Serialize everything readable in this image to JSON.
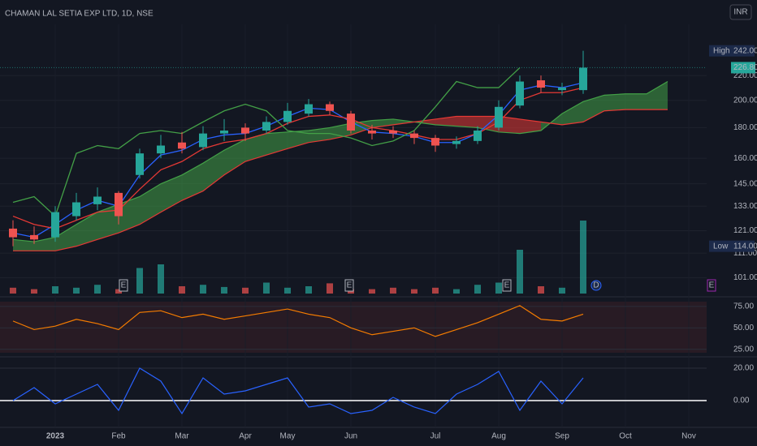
{
  "chart_data": {
    "type": "candlestick",
    "title": "CHAMAN LAL SETIA EXP LTD, 1D, NSE",
    "currency": "INR",
    "categories": [
      null,
      null,
      "2023",
      null,
      null,
      "Feb",
      null,
      null,
      "Mar",
      null,
      null,
      "Apr",
      null,
      "May",
      null,
      null,
      "Jun",
      null,
      null,
      null,
      "Jul",
      null,
      null,
      "Aug",
      null,
      null,
      "Sep",
      null,
      null,
      "Oct",
      null,
      null,
      "Nov"
    ],
    "log_scale": true,
    "grid": true,
    "ylim": [
      95,
      268
    ],
    "yticks": [
      {
        "value": 220,
        "label": "220.00"
      },
      {
        "value": 200,
        "label": "200.00"
      },
      {
        "value": 180,
        "label": "180.00"
      },
      {
        "value": 160,
        "label": "160.00"
      },
      {
        "value": 145,
        "label": "145.00"
      },
      {
        "value": 133,
        "label": "133.00"
      },
      {
        "value": 121,
        "label": "121.00"
      },
      {
        "value": 111,
        "label": "111.00"
      },
      {
        "value": 101,
        "label": "101.00"
      }
    ],
    "markers": [
      {
        "name": "High",
        "value": 242,
        "label": "242.00"
      },
      {
        "name": "Low",
        "value": 114,
        "label": "114.00"
      }
    ],
    "last_price": {
      "value": 226.8,
      "label": "226.80",
      "color": "#26a69a"
    },
    "candles": {
      "up_color": "#26a69a",
      "down_color": "#ef5350",
      "open": [
        122,
        119,
        118,
        128,
        134,
        140,
        150,
        163,
        170,
        167,
        176,
        180,
        178,
        184,
        190,
        197,
        190,
        178,
        178,
        176,
        173,
        169,
        171,
        180,
        196,
        216,
        208,
        208
      ],
      "high": [
        126,
        123,
        133,
        140,
        143,
        141,
        166,
        175,
        177,
        181,
        186,
        183,
        188,
        198,
        201,
        199,
        192,
        182,
        181,
        178,
        175,
        174,
        181,
        200,
        220,
        220,
        214,
        242
      ],
      "low": [
        114,
        115,
        116,
        126,
        131,
        124,
        148,
        160,
        163,
        165,
        171,
        171,
        176,
        182,
        188,
        189,
        176,
        172,
        173,
        169,
        164,
        166,
        169,
        178,
        194,
        206,
        204,
        205
      ],
      "close": [
        118,
        117,
        130,
        135,
        138,
        128,
        163,
        168,
        166,
        176,
        178,
        176,
        184,
        192,
        197,
        192,
        178,
        176,
        176,
        173,
        168,
        171,
        178,
        195,
        215,
        210,
        210,
        226.8
      ]
    },
    "lines": [
      {
        "color": "#2962ff",
        "values": [
          120,
          118,
          124,
          131,
          136,
          133,
          150,
          162,
          165,
          172,
          175,
          176,
          181,
          188,
          194,
          193,
          184,
          177,
          176,
          174,
          170,
          170,
          176,
          189,
          208,
          212,
          210,
          214
        ]
      },
      {
        "color": "#e53935",
        "values": [
          128,
          124,
          122,
          126,
          130,
          131,
          142,
          153,
          158,
          166,
          170,
          172,
          176,
          183,
          188,
          189,
          186,
          180,
          178,
          175,
          172,
          172,
          176,
          184,
          200,
          206,
          206,
          210
        ]
      },
      {
        "color": "#43a047",
        "values": [
          135,
          138,
          128,
          163,
          168,
          166,
          176,
          178,
          176,
          184,
          192,
          197,
          192,
          178,
          176,
          176,
          173,
          168,
          171,
          178,
          195,
          215,
          210,
          210,
          226.8
        ]
      }
    ],
    "cloud": {
      "up_color": "#43a047",
      "down_color": "#e53935",
      "span_a": [
        117,
        116,
        118,
        124,
        130,
        134,
        138,
        145,
        150,
        157,
        165,
        172,
        176,
        177,
        178,
        180,
        183,
        185,
        186,
        184,
        182,
        181,
        180,
        177,
        176,
        178,
        190,
        199,
        204,
        205,
        205,
        215
      ],
      "span_b": [
        112,
        112,
        112,
        114,
        117,
        120,
        124,
        130,
        136,
        141,
        150,
        158,
        162,
        166,
        170,
        172,
        175,
        180,
        182,
        184,
        186,
        188,
        188,
        188,
        186,
        184,
        182,
        184,
        192,
        193,
        193,
        193
      ]
    },
    "volume": {
      "ylim": [
        0,
        140
      ],
      "values": [
        8,
        6,
        10,
        8,
        12,
        6,
        35,
        40,
        10,
        12,
        9,
        8,
        15,
        8,
        10,
        14,
        6,
        6,
        8,
        6,
        8,
        6,
        12,
        15,
        60,
        10,
        8,
        100
      ]
    },
    "events": [
      "E",
      "E",
      "E",
      "D",
      "E"
    ],
    "rsi": {
      "color": "#f57c00",
      "ylim": [
        20,
        82.5
      ],
      "yticks": [
        {
          "value": 75,
          "label": "75.00"
        },
        {
          "value": 50,
          "label": "50.00"
        },
        {
          "value": 25,
          "label": "25.00"
        }
      ],
      "values": [
        58,
        48,
        52,
        60,
        55,
        48,
        68,
        70,
        62,
        66,
        60,
        64,
        68,
        72,
        66,
        62,
        50,
        42,
        46,
        50,
        40,
        48,
        56,
        66,
        76,
        60,
        58,
        66
      ]
    },
    "oscillator": {
      "color": "#2962ff",
      "ylim": [
        -15.5,
        27
      ],
      "yticks": [
        {
          "value": 20,
          "label": "20.00"
        },
        {
          "value": 0,
          "label": "0.00"
        }
      ],
      "values": [
        0,
        8,
        -2,
        4,
        10,
        -6,
        20,
        12,
        -8,
        14,
        4,
        6,
        10,
        14,
        -4,
        -2,
        -8,
        -6,
        2,
        -4,
        -8,
        4,
        10,
        18,
        -6,
        12,
        -2,
        14
      ]
    }
  }
}
